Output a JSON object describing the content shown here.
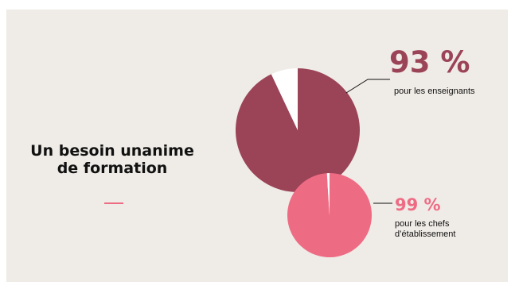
{
  "title": {
    "line1": "Un besoin unanime",
    "line2": "de formation"
  },
  "colors": {
    "background": "#efebe6",
    "teachers": "#9b4357",
    "heads": "#ee6b84",
    "remainder": "#ffffff",
    "text": "#111111"
  },
  "chart_data": [
    {
      "type": "pie",
      "series_label": "pour les enseignants",
      "value_label": "93 %",
      "values": [
        93,
        7
      ],
      "colors": [
        "#9b4357",
        "#ffffff"
      ]
    },
    {
      "type": "pie",
      "series_label": "pour les chefs d’établissement",
      "value_label": "99 %",
      "values": [
        99,
        1
      ],
      "colors": [
        "#ee6b84",
        "#ffffff"
      ]
    }
  ]
}
